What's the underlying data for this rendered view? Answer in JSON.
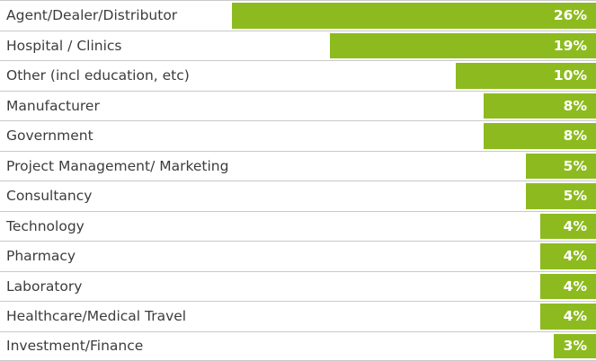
{
  "chart_data": {
    "type": "bar",
    "orientation": "horizontal",
    "categories": [
      "Agent/Dealer/Distributor",
      "Hospital / Clinics",
      "Other (incl education, etc)",
      "Manufacturer",
      "Government",
      "Project Management/ Marketing",
      "Consultancy",
      "Technology",
      "Pharmacy",
      "Laboratory",
      "Healthcare/Medical Travel",
      "Investment/Finance"
    ],
    "values": [
      26,
      19,
      10,
      8,
      8,
      5,
      5,
      4,
      4,
      4,
      4,
      3
    ],
    "value_labels": [
      "26%",
      "19%",
      "10%",
      "8%",
      "8%",
      "5%",
      "5%",
      "4%",
      "4%",
      "4%",
      "4%",
      "3%"
    ],
    "unit": "%",
    "bar_color": "#8dbb1f",
    "grid": false
  }
}
